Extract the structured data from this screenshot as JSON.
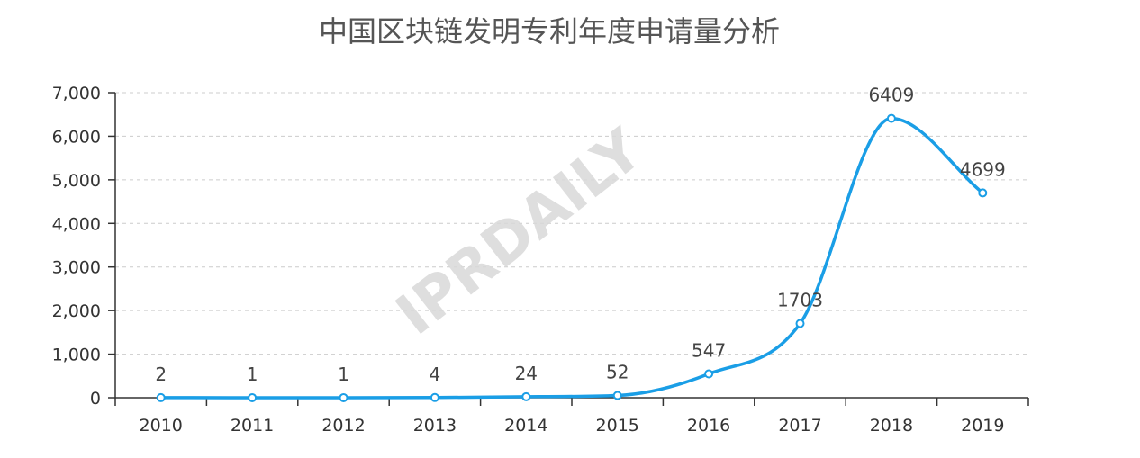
{
  "chart_data": {
    "type": "line",
    "title": "中国区块链发明专利年度申请量分析",
    "categories": [
      "2010",
      "2011",
      "2012",
      "2013",
      "2014",
      "2015",
      "2016",
      "2017",
      "2018",
      "2019"
    ],
    "series": [
      {
        "values": [
          2,
          1,
          1,
          4,
          24,
          52,
          547,
          1703,
          6409,
          4699
        ],
        "color": "#1a9ee6"
      }
    ],
    "data_labels": [
      "2",
      "1",
      "1",
      "4",
      "24",
      "52",
      "547",
      "1703",
      "6409",
      "4699"
    ],
    "ylim": [
      0,
      7000
    ],
    "yticks": [
      0,
      1000,
      2000,
      3000,
      4000,
      5000,
      6000,
      7000
    ],
    "ytick_labels": [
      "0",
      "1,000",
      "2,000",
      "3,000",
      "4,000",
      "5,000",
      "6,000",
      "7,000"
    ],
    "grid": true,
    "smooth": true,
    "xlabel": "",
    "ylabel": ""
  },
  "watermark": "IPRDAILY"
}
